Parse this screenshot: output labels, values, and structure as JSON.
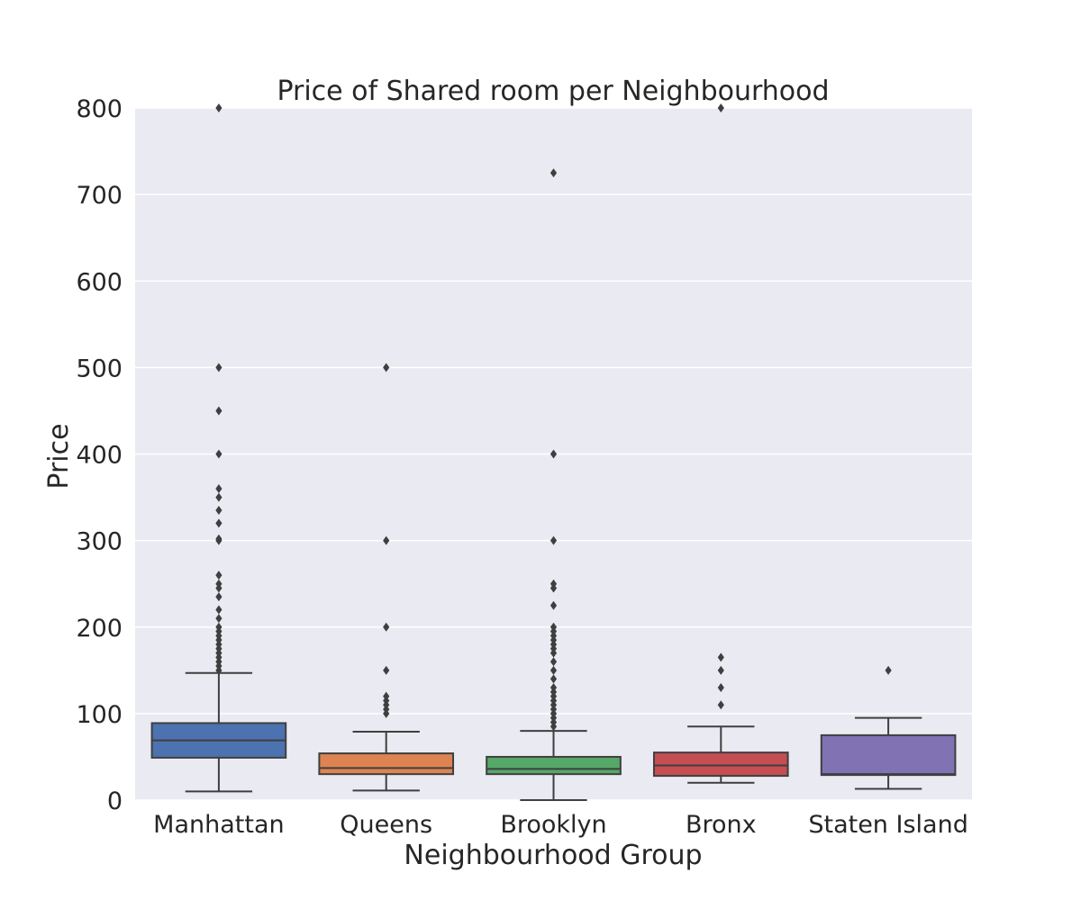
{
  "chart_data": {
    "type": "box",
    "title": "Price of Shared room per Neighbourhood",
    "xlabel": "Neighbourhood Group",
    "ylabel": "Price",
    "ylim": [
      0,
      800
    ],
    "yticks": [
      0,
      100,
      200,
      300,
      400,
      500,
      600,
      700,
      800
    ],
    "grid": true,
    "categories": [
      "Manhattan",
      "Queens",
      "Brooklyn",
      "Bronx",
      "Staten Island"
    ],
    "boxes": [
      {
        "category": "Manhattan",
        "color": "#4c72b0",
        "whisker_low": 10,
        "q1": 49,
        "median": 69,
        "q3": 89,
        "whisker_high": 147,
        "outliers": [
          150,
          155,
          160,
          165,
          170,
          175,
          180,
          185,
          190,
          195,
          200,
          210,
          220,
          235,
          245,
          250,
          260,
          300,
          302,
          320,
          335,
          350,
          360,
          400,
          450,
          500,
          800
        ]
      },
      {
        "category": "Queens",
        "color": "#dd8452",
        "whisker_low": 11,
        "q1": 30,
        "median": 37,
        "q3": 54,
        "whisker_high": 79,
        "outliers": [
          100,
          105,
          110,
          115,
          120,
          150,
          200,
          300,
          500
        ]
      },
      {
        "category": "Brooklyn",
        "color": "#55a868",
        "whisker_low": 0,
        "q1": 30,
        "median": 36,
        "q3": 50,
        "whisker_high": 80,
        "outliers": [
          85,
          90,
          95,
          100,
          105,
          110,
          115,
          120,
          125,
          130,
          140,
          150,
          160,
          170,
          175,
          180,
          185,
          190,
          195,
          200,
          225,
          245,
          250,
          300,
          400,
          725
        ]
      },
      {
        "category": "Bronx",
        "color": "#c44e52",
        "whisker_low": 20,
        "q1": 28,
        "median": 40,
        "q3": 55,
        "whisker_high": 85,
        "outliers": [
          110,
          130,
          150,
          165,
          800
        ]
      },
      {
        "category": "Staten Island",
        "color": "#8172b3",
        "whisker_low": 13,
        "q1": 29,
        "median": 30,
        "q3": 75,
        "whisker_high": 95,
        "outliers": [
          150
        ]
      }
    ]
  }
}
